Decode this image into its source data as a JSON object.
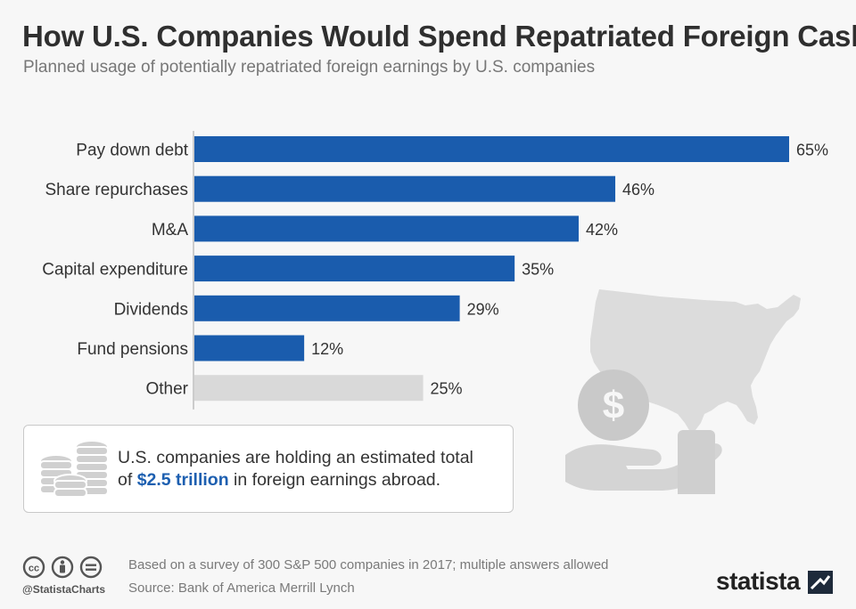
{
  "title": "How U.S. Companies Would Spend Repatriated Foreign Cash",
  "subtitle": "Planned usage of potentially repatriated foreign earnings by U.S. companies",
  "chart_data": {
    "type": "bar",
    "orientation": "horizontal",
    "categories": [
      "Pay down debt",
      "Share repurchases",
      "M&A",
      "Capital expenditure",
      "Dividends",
      "Fund pensions",
      "Other"
    ],
    "values": [
      65,
      46,
      42,
      35,
      29,
      12,
      25
    ],
    "value_labels": [
      "65%",
      "46%",
      "42%",
      "35%",
      "29%",
      "12%",
      "25%"
    ],
    "unit": "%",
    "xlim": [
      0,
      65
    ],
    "grid": false,
    "legend": "none",
    "colors": {
      "primary": "#1a5cad",
      "other": "#d9d9d9"
    },
    "highlight_gray_categories": [
      "Other"
    ]
  },
  "info_box": {
    "icon": "coin-stack-icon",
    "text_line1": "U.S. companies are holding an estimated total",
    "text_prefix": "of ",
    "highlight": "$2.5 trillion",
    "text_suffix": " in foreign earnings abroad."
  },
  "decoration": {
    "icons": [
      "us-map-icon",
      "dollar-coin-icon",
      "hand-icon"
    ]
  },
  "footer": {
    "license_icons": [
      "cc-icon",
      "attribution-icon",
      "no-derivatives-icon"
    ],
    "handle": "@StatistaCharts",
    "note": "Based on a survey of 300 S&P 500 companies in 2017; multiple answers allowed",
    "source": "Source: Bank of America Merrill Lynch",
    "brand": "statista"
  }
}
